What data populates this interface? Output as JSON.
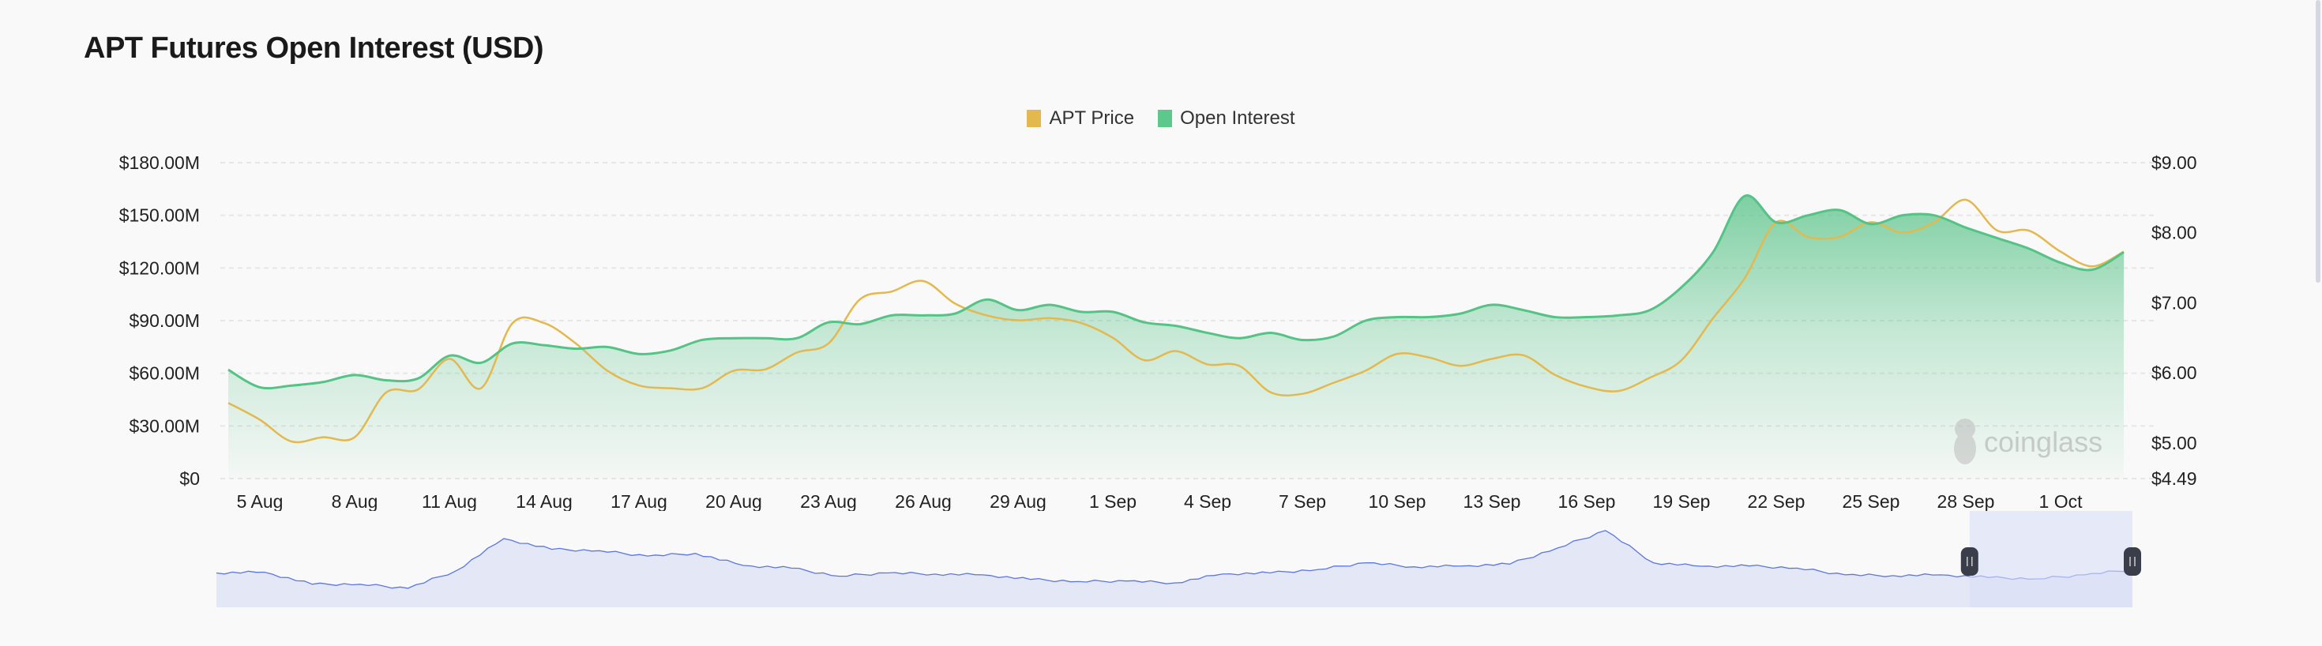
{
  "title": "APT Futures Open Interest (USD)",
  "watermark": "coinglass",
  "colors": {
    "price": "#e3b94f",
    "oi": "#55c286",
    "navigator": "#5b76e0",
    "navigator_fill": "#e4e8f6",
    "selection": "#d9def7",
    "handle": "#3a3d4a"
  },
  "chart_data": {
    "type": "area",
    "title": "APT Futures Open Interest (USD)",
    "legend": [
      "APT Price",
      "Open Interest"
    ],
    "legend_position": "top-center",
    "x_ticks": [
      "5 Aug",
      "8 Aug",
      "11 Aug",
      "14 Aug",
      "17 Aug",
      "20 Aug",
      "23 Aug",
      "26 Aug",
      "29 Aug",
      "1 Sep",
      "4 Sep",
      "7 Sep",
      "10 Sep",
      "13 Sep",
      "16 Sep",
      "19 Sep",
      "22 Sep",
      "25 Sep",
      "28 Sep",
      "1 Oct"
    ],
    "x_start": "4 Aug",
    "x_end": "3 Oct",
    "y_left": {
      "ticks": [
        "$0",
        "$30.00M",
        "$60.00M",
        "$90.00M",
        "$120.00M",
        "$150.00M",
        "$180.00M"
      ],
      "values": [
        0,
        30,
        60,
        90,
        120,
        150,
        180
      ],
      "range": [
        0,
        180
      ],
      "unit": "USD millions"
    },
    "y_right": {
      "ticks": [
        "$4.49",
        "$5.00",
        "$6.00",
        "$7.00",
        "$8.00",
        "$9.00"
      ],
      "values": [
        4.49,
        5,
        6,
        7,
        8,
        9
      ],
      "range": [
        4.49,
        9
      ]
    },
    "grid": true,
    "series": [
      {
        "name": "Open Interest",
        "axis": "left",
        "type": "area",
        "values": [
          62,
          52,
          53,
          55,
          59,
          56,
          57,
          70,
          66,
          77,
          76,
          74,
          75,
          71,
          73,
          79,
          80,
          80,
          80,
          89,
          88,
          93,
          93,
          94,
          102,
          96,
          99,
          95,
          95,
          89,
          87,
          83,
          80,
          83,
          79,
          81,
          90,
          92,
          92,
          94,
          99,
          96,
          92,
          92,
          93,
          96,
          109,
          129,
          161,
          146,
          150,
          153,
          145,
          150,
          150,
          143,
          137,
          131,
          123,
          119,
          129
        ]
      },
      {
        "name": "APT Price",
        "axis": "right",
        "type": "line",
        "values": [
          5.57,
          5.33,
          5.02,
          5.08,
          5.08,
          5.72,
          5.76,
          6.2,
          5.78,
          6.71,
          6.71,
          6.42,
          6.03,
          5.82,
          5.78,
          5.78,
          6.03,
          6.05,
          6.29,
          6.42,
          7.05,
          7.16,
          7.31,
          6.99,
          6.82,
          6.75,
          6.78,
          6.71,
          6.5,
          6.18,
          6.31,
          6.12,
          6.1,
          5.72,
          5.7,
          5.86,
          6.03,
          6.27,
          6.22,
          6.1,
          6.2,
          6.25,
          5.97,
          5.8,
          5.74,
          5.93,
          6.18,
          6.78,
          7.35,
          8.15,
          7.94,
          7.94,
          8.15,
          8.0,
          8.15,
          8.47,
          8.03,
          8.03,
          7.73,
          7.52,
          7.73
        ]
      }
    ],
    "navigator": {
      "values": [
        128,
        131,
        86,
        86,
        71,
        136,
        256,
        216,
        211,
        191,
        201,
        156,
        146,
        116,
        128,
        124,
        121,
        104,
        96,
        98,
        91,
        124,
        128,
        141,
        166,
        151,
        154,
        161,
        221,
        286,
        166,
        153,
        154,
        146,
        121,
        118,
        121,
        111,
        106,
        121,
        141
      ],
      "max": 359,
      "selection": [
        0.915,
        1.0
      ]
    }
  }
}
